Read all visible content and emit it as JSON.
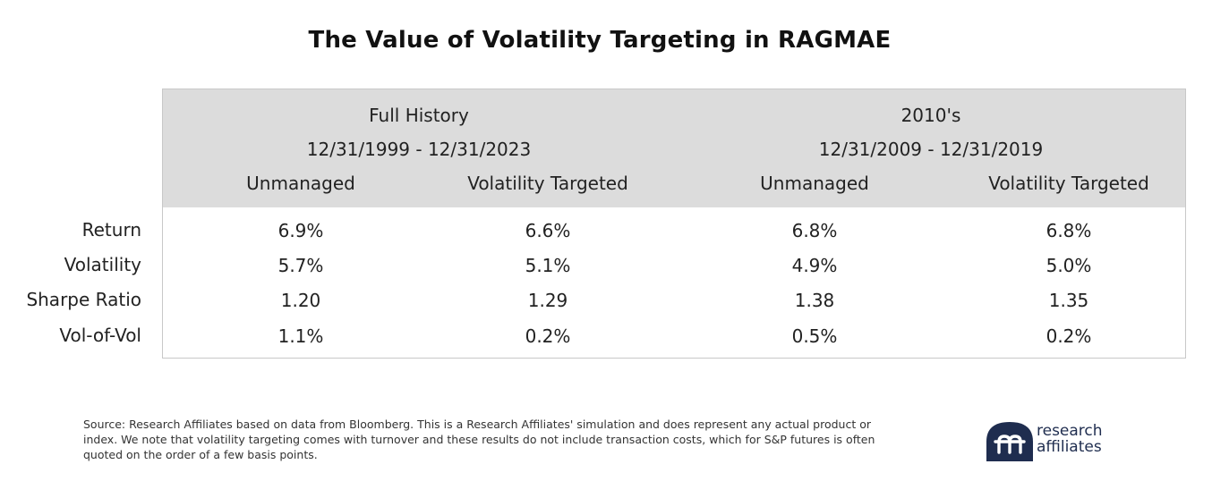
{
  "chart_data": {
    "type": "table",
    "title": "The Value of Volatility Targeting in RAGMAE",
    "groups": [
      {
        "name": "Full History",
        "period": "12/31/1999 - 12/31/2023",
        "columns": [
          "Unmanaged",
          "Volatility Targeted"
        ]
      },
      {
        "name": "2010's",
        "period": "12/31/2009 - 12/31/2019",
        "columns": [
          "Unmanaged",
          "Volatility Targeted"
        ]
      }
    ],
    "rows": [
      {
        "label": "Return",
        "values": [
          "6.9%",
          "6.6%",
          "6.8%",
          "6.8%"
        ]
      },
      {
        "label": "Volatility",
        "values": [
          "5.7%",
          "5.1%",
          "4.9%",
          "5.0%"
        ]
      },
      {
        "label": "Sharpe Ratio",
        "values": [
          "1.20",
          "1.29",
          "1.38",
          "1.35"
        ]
      },
      {
        "label": "Vol-of-Vol",
        "values": [
          "1.1%",
          "0.2%",
          "0.5%",
          "0.2%"
        ]
      }
    ]
  },
  "footer": {
    "source": "Source: Research Affiliates based on data from Bloomberg. This is a Research Affiliates' simulation and does represent any actual product or index. We note that volatility targeting comes with turnover and these results do not include transaction costs, which for S&P futures is often quoted on the order of a few basis points."
  },
  "logo": {
    "line1": "research",
    "line2": "affiliates",
    "color": "#1f2d4f"
  }
}
